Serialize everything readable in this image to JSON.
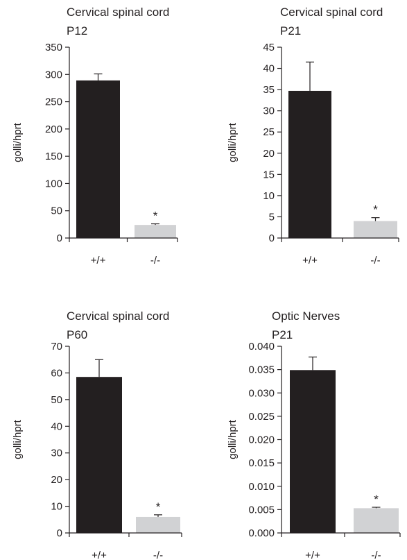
{
  "chart_data": [
    {
      "type": "bar",
      "title": "Cervical spinal cord",
      "subtitle": "P12",
      "ylabel": "golli/hprt",
      "categories": [
        "+/+",
        "-/-"
      ],
      "values": [
        289,
        24
      ],
      "errors": [
        12,
        2
      ],
      "colors": [
        "#231f20",
        "#d1d2d4"
      ],
      "significance": [
        "",
        "*"
      ],
      "ylim": [
        0,
        350
      ],
      "yticks": [
        "0",
        "50",
        "100",
        "150",
        "200",
        "250",
        "300",
        "350"
      ],
      "grid": false,
      "legend": "none"
    },
    {
      "type": "bar",
      "title": "Cervical spinal cord",
      "subtitle": "P21",
      "ylabel": "golli/hprt",
      "categories": [
        "+/+",
        "-/-"
      ],
      "values": [
        34.7,
        4.0
      ],
      "errors": [
        6.8,
        0.8
      ],
      "colors": [
        "#231f20",
        "#d1d2d4"
      ],
      "significance": [
        "",
        "*"
      ],
      "ylim": [
        0,
        45
      ],
      "yticks": [
        "0",
        "5",
        "10",
        "15",
        "20",
        "25",
        "30",
        "35",
        "40",
        "45"
      ],
      "grid": false,
      "legend": "none"
    },
    {
      "type": "bar",
      "title": "Cervical spinal cord",
      "subtitle": "P60",
      "ylabel": "golli/hprt",
      "categories": [
        "+/+",
        "-/-"
      ],
      "values": [
        58.5,
        6.0
      ],
      "errors": [
        6.5,
        0.8
      ],
      "colors": [
        "#231f20",
        "#d1d2d4"
      ],
      "significance": [
        "",
        "*"
      ],
      "ylim": [
        0,
        70
      ],
      "yticks": [
        "0",
        "10",
        "20",
        "30",
        "40",
        "50",
        "60",
        "70"
      ],
      "grid": false,
      "legend": "none"
    },
    {
      "type": "bar",
      "title": "Optic Nerves",
      "subtitle": "P21",
      "ylabel": "golli/hprt",
      "categories": [
        "+/+",
        "-/-"
      ],
      "values": [
        0.0349,
        0.0053
      ],
      "errors": [
        0.0028,
        0.0002
      ],
      "colors": [
        "#231f20",
        "#d1d2d4"
      ],
      "significance": [
        "",
        "*"
      ],
      "ylim": [
        0,
        0.04
      ],
      "yticks": [
        "0.000",
        "0.005",
        "0.010",
        "0.015",
        "0.020",
        "0.025",
        "0.030",
        "0.035",
        "0.040"
      ],
      "grid": false,
      "legend": "none"
    }
  ]
}
